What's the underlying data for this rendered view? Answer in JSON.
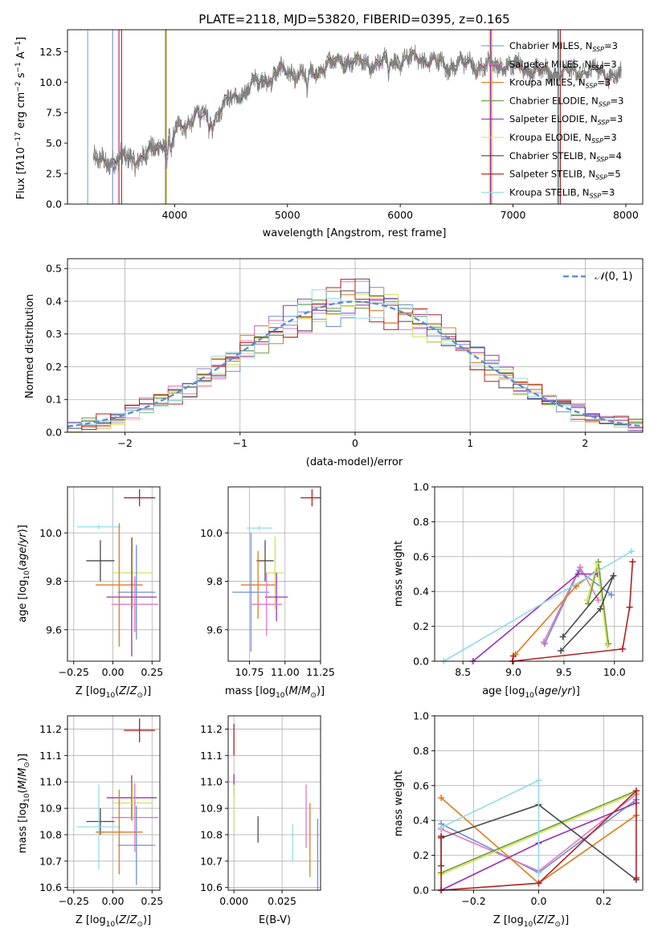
{
  "chart_data": [
    {
      "id": "spectrum",
      "type": "line",
      "title": "PLATE=2118, MJD=53820, FIBERID=0395, z=0.165",
      "xlabel": "wavelength [Angstrom, rest frame]",
      "ylabel": "Flux [f_λ 10^-17 erg cm^-2 s^-1 A^-1]",
      "xlim": [
        3050,
        8150
      ],
      "ylim": [
        0,
        14.3
      ],
      "xticks": [
        4000,
        5000,
        6000,
        7000,
        8000
      ],
      "yticks": [
        0.0,
        2.5,
        5.0,
        7.5,
        10.0,
        12.5
      ],
      "legend_position": "right",
      "data_trace_color": "#808080",
      "continuum_points": [
        [
          3280,
          3.4
        ],
        [
          3450,
          3.6
        ],
        [
          3700,
          3.8
        ],
        [
          3800,
          4.3
        ],
        [
          3880,
          5.0
        ],
        [
          3970,
          5.2
        ],
        [
          4030,
          6.1
        ],
        [
          4100,
          6.8
        ],
        [
          4200,
          7.4
        ],
        [
          4300,
          7.0
        ],
        [
          4350,
          7.2
        ],
        [
          4450,
          8.3
        ],
        [
          4600,
          9.1
        ],
        [
          4700,
          9.8
        ],
        [
          4800,
          10.3
        ],
        [
          4860,
          10.6
        ],
        [
          5000,
          10.9
        ],
        [
          5170,
          10.4
        ],
        [
          5300,
          11.2
        ],
        [
          5500,
          11.9
        ],
        [
          5700,
          11.5
        ],
        [
          5890,
          11.7
        ],
        [
          6000,
          11.8
        ],
        [
          6200,
          12.0
        ],
        [
          6400,
          11.3
        ],
        [
          6560,
          11.6
        ],
        [
          6700,
          11.3
        ],
        [
          6900,
          11.5
        ],
        [
          7100,
          11.2
        ],
        [
          7300,
          10.7
        ],
        [
          7500,
          10.8
        ],
        [
          7700,
          11.0
        ],
        [
          7950,
          10.5
        ]
      ],
      "series": [
        {
          "name": "Chabrier MILES, N_SSP=3",
          "color": "#6e8fd4",
          "lines": [
            3450,
            6800
          ]
        },
        {
          "name": "Salpeter MILES, N_SSP=3",
          "color": "#e377c2",
          "lines": [
            3500,
            6800
          ]
        },
        {
          "name": "Kroupa MILES, N_SSP=3",
          "color": "#e07b1f",
          "lines": [
            3510,
            6810
          ]
        },
        {
          "name": "Chabrier ELODIE, N_SSP=3",
          "color": "#6a9a3a",
          "lines": [
            3920,
            6800
          ]
        },
        {
          "name": "Salpeter ELODIE, N_SSP=3",
          "color": "#9b30b0",
          "lines": [
            3920,
            6800
          ]
        },
        {
          "name": "Kroupa ELODIE, N_SSP=3",
          "color": "#d4e157",
          "lines": [
            3930,
            6790
          ]
        },
        {
          "name": "Chabrier STELIB, N_SSP=4",
          "color": "#4a4a4a",
          "lines": [
            3230,
            7400
          ]
        },
        {
          "name": "Salpeter STELIB, N_SSP=5",
          "color": "#b22222",
          "lines": [
            3530,
            7420
          ]
        },
        {
          "name": "Kroupa STELIB, N_SSP=3",
          "color": "#8fdde8",
          "lines": [
            3230,
            7410
          ]
        }
      ]
    },
    {
      "id": "residuals",
      "type": "line",
      "xlabel": "(data-model)/error",
      "ylabel": "Normed distribution",
      "xlim": [
        -2.5,
        2.5
      ],
      "ylim": [
        0,
        0.53
      ],
      "xticks": [
        -2,
        -1,
        0,
        1,
        2
      ],
      "yticks": [
        0.0,
        0.1,
        0.2,
        0.3,
        0.4,
        0.5
      ],
      "grid": true,
      "legend_position": "top-right",
      "legend": "N(0,1)",
      "gaussian_color": "#5b8ed6",
      "hist_colors": [
        "#6e8fd4",
        "#e377c2",
        "#e07b1f",
        "#6a9a3a",
        "#9b30b0",
        "#d4e157",
        "#4a4a4a",
        "#b22222",
        "#8fdde8"
      ]
    },
    {
      "id": "age_vs_Z",
      "type": "scatter",
      "xlabel": "Z [log10(Z/Z_sun)]",
      "ylabel": "age [log10(age/yr)]",
      "xlim": [
        -0.29,
        0.3
      ],
      "ylim": [
        9.47,
        10.19
      ],
      "xticks": [
        -0.25,
        0.0,
        0.25
      ],
      "yticks": [
        9.6,
        9.8,
        10.0
      ],
      "grid": true,
      "points": [
        {
          "x": 0.17,
          "y": 10.145,
          "xerr": 0.1,
          "yerr": 0.035,
          "color": "#b22222"
        },
        {
          "x": -0.09,
          "y": 10.025,
          "xerr": 0.14,
          "yerr": 0.01,
          "color": "#8fdde8"
        },
        {
          "x": -0.08,
          "y": 9.885,
          "xerr": 0.09,
          "yerr": 0.085,
          "color": "#4a4a4a"
        },
        {
          "x": 0.125,
          "y": 9.835,
          "xerr": 0.125,
          "yerr": 0.15,
          "color": "#d4e157"
        },
        {
          "x": 0.04,
          "y": 9.785,
          "xerr": 0.15,
          "yerr": 0.255,
          "color": "#e07b1f"
        },
        {
          "x": 0.15,
          "y": 9.755,
          "xerr": 0.12,
          "yerr": 0.195,
          "color": "#6e8fd4"
        },
        {
          "x": 0.12,
          "y": 9.735,
          "xerr": 0.16,
          "yerr": 0.245,
          "color": "#9b30b0"
        },
        {
          "x": 0.14,
          "y": 9.705,
          "xerr": 0.15,
          "yerr": 0.115,
          "color": "#e377c2"
        }
      ]
    },
    {
      "id": "age_vs_mass",
      "type": "scatter",
      "xlabel": "mass [log10(M/M_sun)]",
      "ylabel": "",
      "xlim": [
        10.6,
        11.25
      ],
      "ylim": [
        9.47,
        10.19
      ],
      "xticks": [
        10.75,
        11.0,
        11.25
      ],
      "yticks": [
        9.6,
        9.8,
        10.0
      ],
      "grid": true,
      "points": [
        {
          "x": 11.19,
          "y": 10.145,
          "xerr": 0.08,
          "yerr": 0.035,
          "color": "#b22222"
        },
        {
          "x": 10.82,
          "y": 10.02,
          "xerr": 0.09,
          "yerr": 0.01,
          "color": "#8fdde8"
        },
        {
          "x": 10.86,
          "y": 9.885,
          "xerr": 0.06,
          "yerr": 0.085,
          "color": "#4a4a4a"
        },
        {
          "x": 10.93,
          "y": 9.835,
          "xerr": 0.06,
          "yerr": 0.15,
          "color": "#d4e157"
        },
        {
          "x": 10.81,
          "y": 9.785,
          "xerr": 0.12,
          "yerr": 0.14,
          "color": "#e07b1f"
        },
        {
          "x": 10.76,
          "y": 9.755,
          "xerr": 0.13,
          "yerr": 0.245,
          "color": "#6e8fd4"
        },
        {
          "x": 10.94,
          "y": 9.735,
          "xerr": 0.08,
          "yerr": 0.1,
          "color": "#9b30b0"
        },
        {
          "x": 10.87,
          "y": 9.705,
          "xerr": 0.11,
          "yerr": 0.13,
          "color": "#e377c2"
        }
      ]
    },
    {
      "id": "weight_vs_age",
      "type": "line",
      "xlabel": "age  [log10(age/yr)]",
      "ylabel": "mass weight",
      "xlim": [
        8.22,
        10.28
      ],
      "ylim": [
        0,
        1.0
      ],
      "xticks": [
        8.5,
        9.0,
        9.5,
        10.0
      ],
      "yticks": [
        0.0,
        0.2,
        0.4,
        0.6,
        0.8,
        1.0
      ],
      "grid": true,
      "series": [
        {
          "color": "#6e8fd4",
          "points": [
            [
              9.31,
              0.1
            ],
            [
              9.65,
              0.52
            ],
            [
              9.97,
              0.38
            ]
          ]
        },
        {
          "color": "#e377c2",
          "points": [
            [
              9.3,
              0.11
            ],
            [
              9.66,
              0.54
            ],
            [
              9.84,
              0.35
            ]
          ]
        },
        {
          "color": "#e07b1f",
          "points": [
            [
              9.02,
              0.04
            ],
            [
              9.62,
              0.43
            ],
            [
              9.84,
              0.53
            ]
          ]
        },
        {
          "color": "#6a9a3a",
          "points": [
            [
              9.74,
              0.33
            ],
            [
              9.84,
              0.57
            ],
            [
              9.94,
              0.1
            ]
          ]
        },
        {
          "color": "#9b30b0",
          "points": [
            [
              8.6,
              0.0
            ],
            [
              9.64,
              0.5
            ],
            [
              9.83,
              0.5
            ]
          ]
        },
        {
          "color": "#d4e157",
          "points": [
            [
              9.73,
              0.35
            ],
            [
              9.83,
              0.56
            ],
            [
              9.93,
              0.09
            ]
          ]
        },
        {
          "color": "#4a4a4a",
          "points": [
            [
              9.47,
              0.06
            ],
            [
              9.86,
              0.3
            ],
            [
              9.99,
              0.49
            ],
            [
              9.49,
              0.14
            ]
          ]
        },
        {
          "color": "#b22222",
          "points": [
            [
              9.0,
              0.03
            ],
            [
              8.99,
              0.0
            ],
            [
              10.08,
              0.07
            ],
            [
              10.15,
              0.31
            ],
            [
              10.18,
              0.57
            ]
          ]
        },
        {
          "color": "#8fdde8",
          "points": [
            [
              8.31,
              0.0
            ],
            [
              10.17,
              0.63
            ]
          ]
        }
      ]
    },
    {
      "id": "mass_vs_Z",
      "type": "scatter",
      "xlabel": "Z [log10(Z/Z_sun)]",
      "ylabel": "mass [log10(M/M_sun)]",
      "xlim": [
        -0.29,
        0.3
      ],
      "ylim": [
        10.59,
        11.25
      ],
      "xticks": [
        -0.25,
        0.0,
        0.25
      ],
      "yticks": [
        10.6,
        10.7,
        10.8,
        10.9,
        11.0,
        11.1,
        11.2
      ],
      "grid": true,
      "points": [
        {
          "x": 0.17,
          "y": 11.195,
          "xerr": 0.1,
          "yerr": 0.045,
          "color": "#b22222"
        },
        {
          "x": -0.08,
          "y": 10.85,
          "xerr": 0.09,
          "yerr": 0.05,
          "color": "#4a4a4a"
        },
        {
          "x": -0.09,
          "y": 10.83,
          "xerr": 0.14,
          "yerr": 0.16,
          "color": "#8fdde8"
        },
        {
          "x": 0.12,
          "y": 10.94,
          "xerr": 0.16,
          "yerr": 0.085,
          "color": "#9b30b0"
        },
        {
          "x": 0.125,
          "y": 10.92,
          "xerr": 0.125,
          "yerr": 0.07,
          "color": "#d4e157"
        },
        {
          "x": 0.14,
          "y": 10.865,
          "xerr": 0.15,
          "yerr": 0.13,
          "color": "#e377c2"
        },
        {
          "x": 0.04,
          "y": 10.81,
          "xerr": 0.15,
          "yerr": 0.16,
          "color": "#e07b1f"
        },
        {
          "x": 0.15,
          "y": 10.76,
          "xerr": 0.12,
          "yerr": 0.15,
          "color": "#6e8fd4"
        }
      ]
    },
    {
      "id": "mass_vs_ebv",
      "type": "scatter",
      "xlabel": "E(B-V)",
      "ylabel": "",
      "xlim": [
        -0.003,
        0.045
      ],
      "ylim": [
        10.59,
        11.25
      ],
      "xticks": [
        0.0,
        0.025
      ],
      "yticks": [
        10.6,
        10.7,
        10.8,
        10.9,
        11.0,
        11.1,
        11.2
      ],
      "grid": true,
      "points": [
        {
          "x": 0.0,
          "y": 11.16,
          "yerr": 0.06,
          "color": "#b22222"
        },
        {
          "x": 0.0,
          "y": 10.99,
          "yerr": 0.04,
          "color": "#9b30b0"
        },
        {
          "x": 0.0,
          "y": 10.9,
          "yerr": 0.09,
          "color": "#d4e157"
        },
        {
          "x": 0.0125,
          "y": 10.82,
          "yerr": 0.05,
          "color": "#4a4a4a"
        },
        {
          "x": 0.0305,
          "y": 10.77,
          "yerr": 0.07,
          "color": "#8fdde8"
        },
        {
          "x": 0.0375,
          "y": 10.87,
          "yerr": 0.12,
          "color": "#e377c2"
        },
        {
          "x": 0.0395,
          "y": 10.78,
          "yerr": 0.14,
          "color": "#e07b1f"
        },
        {
          "x": 0.0435,
          "y": 10.72,
          "yerr": 0.14,
          "color": "#6e8fd4"
        }
      ]
    },
    {
      "id": "weight_vs_Z",
      "type": "line",
      "xlabel": "Z [log10(Z/Z_sun)]",
      "ylabel": "mass weight",
      "xlim": [
        -0.32,
        0.32
      ],
      "ylim": [
        0,
        1.0
      ],
      "xticks": [
        -0.2,
        0.0,
        0.2
      ],
      "yticks": [
        0.0,
        0.2,
        0.4,
        0.6,
        0.8,
        1.0
      ],
      "grid": true,
      "series": [
        {
          "color": "#6e8fd4",
          "points": [
            [
              -0.3,
              0.38
            ],
            [
              0.0,
              0.1
            ],
            [
              0.3,
              0.52
            ]
          ]
        },
        {
          "color": "#e377c2",
          "points": [
            [
              -0.3,
              0.35
            ],
            [
              0.0,
              0.11
            ],
            [
              0.3,
              0.55
            ]
          ]
        },
        {
          "color": "#e07b1f",
          "points": [
            [
              -0.3,
              0.53
            ],
            [
              0.0,
              0.04
            ],
            [
              0.3,
              0.43
            ]
          ]
        },
        {
          "color": "#6a9a3a",
          "points": [
            [
              -0.3,
              0.1
            ],
            [
              0.3,
              0.57
            ]
          ]
        },
        {
          "color": "#9b30b0",
          "points": [
            [
              -0.3,
              0.0
            ],
            [
              0.0,
              0.27
            ],
            [
              0.3,
              0.5
            ]
          ]
        },
        {
          "color": "#d4e157",
          "points": [
            [
              -0.3,
              0.09
            ],
            [
              0.3,
              0.56
            ]
          ]
        },
        {
          "color": "#4a4a4a",
          "points": [
            [
              -0.3,
              0.14
            ],
            [
              -0.3,
              0.3
            ],
            [
              0.0,
              0.49
            ],
            [
              0.3,
              0.06
            ]
          ]
        },
        {
          "color": "#b22222",
          "points": [
            [
              -0.3,
              0.31
            ],
            [
              -0.3,
              0.0
            ],
            [
              0.0,
              0.04
            ],
            [
              0.3,
              0.57
            ],
            [
              0.3,
              0.07
            ]
          ]
        },
        {
          "color": "#8fdde8",
          "points": [
            [
              -0.3,
              0.36
            ],
            [
              0.0,
              0.63
            ],
            [
              0.0,
              0.1
            ]
          ]
        }
      ]
    }
  ]
}
